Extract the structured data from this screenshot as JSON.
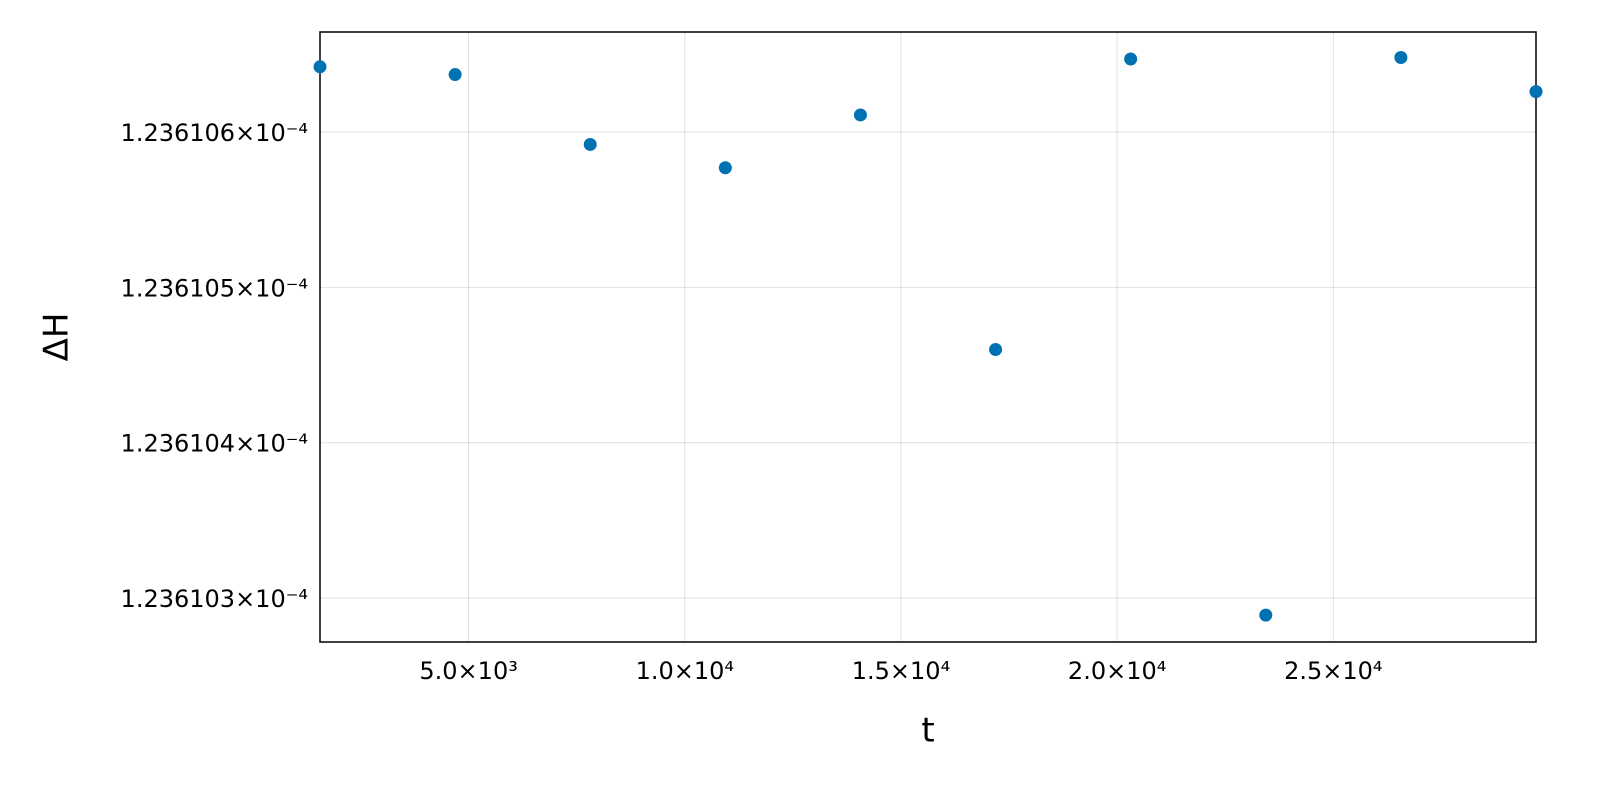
{
  "chart_data": {
    "type": "scatter",
    "x_label": "t",
    "y_label": "ΔH",
    "x": [
      1562.5,
      4687.5,
      7812.5,
      10937.5,
      14062.5,
      17187.5,
      20312.5,
      23437.5,
      26562.5,
      29687.5
    ],
    "series": [
      {
        "color": "#0072b2",
        "values": [
          0.000123610642,
          0.000123610637,
          0.000123610592,
          0.000123610577,
          0.000123610611,
          0.00012361046,
          0.000123610647,
          0.000123610289,
          0.000123610648,
          0.000123610626
        ]
      }
    ],
    "xlim": [
      1562.5,
      29687.5
    ],
    "ylim": [
      0.0001236102717,
      0.0001236106644
    ],
    "xticks": [
      {
        "value": 5000,
        "label": "5.0×10³"
      },
      {
        "value": 10000,
        "label": "1.0×10⁴"
      },
      {
        "value": 15000,
        "label": "1.5×10⁴"
      },
      {
        "value": 20000,
        "label": "2.0×10⁴"
      },
      {
        "value": 25000,
        "label": "2.5×10⁴"
      }
    ],
    "yticks": [
      {
        "value": 0.0001236103,
        "label": "1.236103×10⁻⁴"
      },
      {
        "value": 0.0001236104,
        "label": "1.236104×10⁻⁴"
      },
      {
        "value": 0.0001236105,
        "label": "1.236105×10⁻⁴"
      },
      {
        "value": 0.0001236106,
        "label": "1.236106×10⁻⁴"
      }
    ],
    "grid": true
  }
}
